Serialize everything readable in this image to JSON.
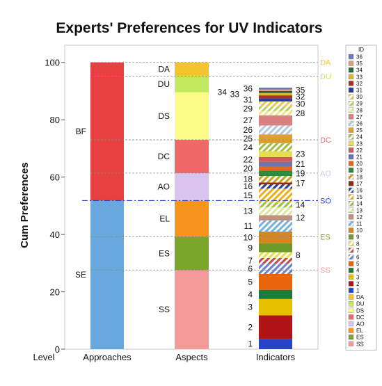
{
  "chart_data": {
    "type": "bar",
    "title": "Experts' Preferences for UV Indicators",
    "ylabel": "Cum Preferences",
    "level_label": "Level",
    "ylim": [
      0,
      106
    ],
    "yticks": [
      0,
      20,
      40,
      60,
      80,
      100
    ],
    "grid": false,
    "legend_position": "right",
    "legend_title": "ID",
    "categories": [
      "Approaches",
      "Aspects",
      "Indicators"
    ],
    "reference_line": {
      "label": "SO",
      "value": 51.8,
      "color": "#1f3fd0"
    },
    "colors": {
      "SE": "#69a8dc",
      "BF": "#e84040",
      "SS": "#f49a9a",
      "ES": "#7aa62c",
      "EL": "#f7941d",
      "AO": "#d9c4f0",
      "DC": "#f06868",
      "DS": "#fbfb88",
      "DU": "#c3ea5f",
      "DA": "#f3c330"
    },
    "approaches": [
      {
        "id": "SE",
        "start": 0,
        "end": 51.8
      },
      {
        "id": "BF",
        "start": 51.8,
        "end": 100
      }
    ],
    "aspects": [
      {
        "id": "SS",
        "start": 0,
        "end": 27.6
      },
      {
        "id": "ES",
        "start": 27.6,
        "end": 39.2
      },
      {
        "id": "EL",
        "start": 39.2,
        "end": 51.8
      },
      {
        "id": "AO",
        "start": 51.8,
        "end": 61.4
      },
      {
        "id": "DC",
        "start": 61.4,
        "end": 73.0
      },
      {
        "id": "DS",
        "start": 73.0,
        "end": 89.6
      },
      {
        "id": "DU",
        "start": 89.6,
        "end": 95.2
      },
      {
        "id": "DA",
        "start": 95.2,
        "end": 100
      }
    ],
    "aspect_levels": [
      {
        "label": "SS",
        "value": 27.6
      },
      {
        "label": "ES",
        "value": 39.2
      },
      {
        "label": "SO",
        "value": 51.8,
        "color": "#1f3fd0"
      },
      {
        "label": "AO",
        "value": 61.4
      },
      {
        "label": "DC",
        "value": 73.0
      },
      {
        "label": "DU",
        "value": 95.2
      },
      {
        "label": "DA",
        "value": 100
      }
    ],
    "indicators": [
      {
        "id": "1",
        "value": 3.6,
        "color": "#2743c6",
        "hatch": false
      },
      {
        "id": "2",
        "value": 8.2,
        "color": "#b01414",
        "hatch": false
      },
      {
        "id": "3",
        "value": 5.7,
        "color": "#e5c100",
        "hatch": false
      },
      {
        "id": "4",
        "value": 3.2,
        "color": "#1f7a3a",
        "hatch": false
      },
      {
        "id": "5",
        "value": 5.5,
        "color": "#e8650a",
        "hatch": false
      },
      {
        "id": "6",
        "value": 3.6,
        "color": "#6a86c8",
        "hatch": true
      },
      {
        "id": "7",
        "value": 2.0,
        "color": "#c84c4c",
        "hatch": true
      },
      {
        "id": "8",
        "value": 2.0,
        "color": "#e8e04a",
        "hatch": true
      },
      {
        "id": "9",
        "value": 3.1,
        "color": "#6f9a2a",
        "hatch": false
      },
      {
        "id": "10",
        "value": 4.1,
        "color": "#d48620",
        "hatch": false
      },
      {
        "id": "11",
        "value": 3.9,
        "color": "#7fb0d8",
        "hatch": true
      },
      {
        "id": "12",
        "value": 1.8,
        "color": "#c09080",
        "hatch": false
      },
      {
        "id": "13",
        "value": 2.8,
        "color": "#dce6a0",
        "hatch": true
      },
      {
        "id": "14",
        "value": 1.6,
        "color": "#9ac040",
        "hatch": true
      },
      {
        "id": "15",
        "value": 4.9,
        "color": "#e8b020",
        "hatch": true
      },
      {
        "id": "16",
        "value": 1.5,
        "color": "#2c3c9c",
        "hatch": true
      },
      {
        "id": "17",
        "value": 0.6,
        "color": "#8a2a14",
        "hatch": false
      },
      {
        "id": "18",
        "value": 2.3,
        "color": "#c6a020",
        "hatch": true
      },
      {
        "id": "19",
        "value": 1.8,
        "color": "#2a8a3a",
        "hatch": false
      },
      {
        "id": "20",
        "value": 1.6,
        "color": "#e06a20",
        "hatch": false
      },
      {
        "id": "21",
        "value": 1.5,
        "color": "#6a74b0",
        "hatch": false
      },
      {
        "id": "22",
        "value": 1.7,
        "color": "#d05a5a",
        "hatch": false
      },
      {
        "id": "23",
        "value": 2.0,
        "color": "#e8dc50",
        "hatch": false
      },
      {
        "id": "24",
        "value": 2.8,
        "color": "#a0c040",
        "hatch": true
      },
      {
        "id": "25",
        "value": 3.1,
        "color": "#e0a030",
        "hatch": false
      },
      {
        "id": "26",
        "value": 3.1,
        "color": "#b4c8e0",
        "hatch": true
      },
      {
        "id": "27",
        "value": 3.5,
        "color": "#d88080",
        "hatch": false
      },
      {
        "id": "28",
        "value": 1.5,
        "color": "#f0e890",
        "hatch": true
      },
      {
        "id": "29",
        "value": 1.6,
        "color": "#b8d060",
        "hatch": true
      },
      {
        "id": "30",
        "value": 1.8,
        "color": "#f0c850",
        "hatch": true
      },
      {
        "id": "31",
        "value": 1.1,
        "color": "#2c3c9c",
        "hatch": false
      },
      {
        "id": "32",
        "value": 1.0,
        "color": "#a83020",
        "hatch": false
      },
      {
        "id": "33",
        "value": 0.8,
        "color": "#d8b830",
        "hatch": false
      },
      {
        "id": "34",
        "value": 0.7,
        "color": "#2a6a3a",
        "hatch": false
      },
      {
        "id": "35",
        "value": 0.6,
        "color": "#d0a080",
        "hatch": false
      },
      {
        "id": "36",
        "value": 0.6,
        "color": "#6a7ab8",
        "hatch": false
      }
    ],
    "indicator_labels": [
      {
        "id": "1",
        "side": "left"
      },
      {
        "id": "2",
        "side": "left"
      },
      {
        "id": "3",
        "side": "left"
      },
      {
        "id": "4",
        "side": "left"
      },
      {
        "id": "5",
        "side": "left"
      },
      {
        "id": "6",
        "side": "left"
      },
      {
        "id": "7",
        "side": "left"
      },
      {
        "id": "8",
        "side": "right"
      },
      {
        "id": "9",
        "side": "left"
      },
      {
        "id": "10",
        "side": "left"
      },
      {
        "id": "11",
        "side": "left"
      },
      {
        "id": "12",
        "side": "right"
      },
      {
        "id": "13",
        "side": "left"
      },
      {
        "id": "14",
        "side": "right"
      },
      {
        "id": "15",
        "side": "left"
      },
      {
        "id": "16",
        "side": "left"
      },
      {
        "id": "17",
        "side": "right"
      },
      {
        "id": "18",
        "side": "left"
      },
      {
        "id": "19",
        "side": "right"
      },
      {
        "id": "20",
        "side": "left"
      },
      {
        "id": "21",
        "side": "right"
      },
      {
        "id": "22",
        "side": "left"
      },
      {
        "id": "23",
        "side": "right"
      },
      {
        "id": "24",
        "side": "left"
      },
      {
        "id": "25",
        "side": "left"
      },
      {
        "id": "26",
        "side": "left"
      },
      {
        "id": "27",
        "side": "left"
      },
      {
        "id": "28",
        "side": "right"
      },
      {
        "id": "29",
        "side": "left"
      },
      {
        "id": "30",
        "side": "right"
      },
      {
        "id": "31",
        "side": "left"
      },
      {
        "id": "32",
        "side": "right"
      },
      {
        "id": "33",
        "side": "far-left"
      },
      {
        "id": "34",
        "side": "farther-left"
      },
      {
        "id": "35",
        "side": "right"
      },
      {
        "id": "36",
        "side": "left"
      }
    ],
    "legend_order": [
      "36",
      "35",
      "34",
      "33",
      "32",
      "31",
      "30",
      "29",
      "28",
      "27",
      "26",
      "25",
      "24",
      "23",
      "22",
      "21",
      "20",
      "19",
      "18",
      "17",
      "16",
      "15",
      "14",
      "13",
      "12",
      "11",
      "10",
      "9",
      "8",
      "7",
      "6",
      "5",
      "4",
      "3",
      "2",
      "1",
      "DA",
      "DU",
      "DS",
      "DC",
      "AO",
      "EL",
      "ES",
      "SS"
    ]
  }
}
